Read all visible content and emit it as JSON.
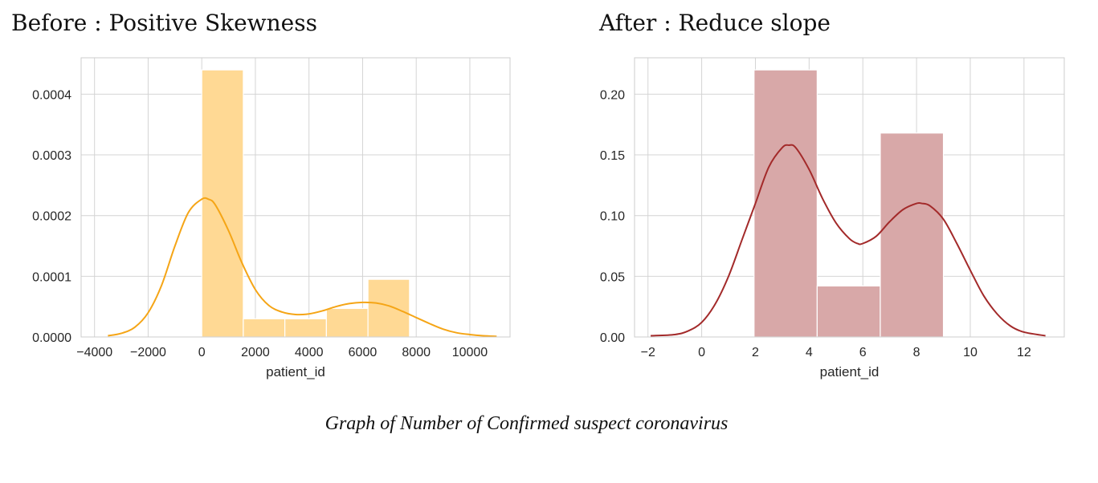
{
  "charts": [
    {
      "heading": "Before : Positive Skewness",
      "chart_data": {
        "type": "bar",
        "subtype": "histogram-with-kde",
        "xlabel": "patient_id",
        "ylabel": "",
        "xlim": [
          -4500,
          11500
        ],
        "ylim": [
          0,
          0.00046
        ],
        "xticks": [
          -4000,
          -2000,
          0,
          2000,
          4000,
          6000,
          8000,
          10000
        ],
        "xtick_labels": [
          "−4000",
          "−2000",
          "0",
          "2000",
          "4000",
          "6000",
          "8000",
          "10000"
        ],
        "yticks": [
          0,
          0.0001,
          0.0002,
          0.0003,
          0.0004
        ],
        "ytick_labels": [
          "0.0000",
          "0.0001",
          "0.0002",
          "0.0003",
          "0.0004"
        ],
        "grid": true,
        "bar_color": "#ffd994",
        "line_color": "#f5a516",
        "bins": [
          {
            "x0": 0,
            "x1": 1550,
            "value": 0.00044
          },
          {
            "x0": 1550,
            "x1": 3100,
            "value": 3e-05
          },
          {
            "x0": 3100,
            "x1": 4650,
            "value": 3e-05
          },
          {
            "x0": 4650,
            "x1": 6200,
            "value": 4.7e-05
          },
          {
            "x0": 6200,
            "x1": 7750,
            "value": 9.5e-05
          }
        ],
        "kde": {
          "x": [
            -3500,
            -3000,
            -2500,
            -2000,
            -1500,
            -1000,
            -500,
            0,
            250,
            500,
            1000,
            1500,
            2000,
            2500,
            3000,
            3500,
            4000,
            4500,
            5000,
            5500,
            6000,
            6500,
            7000,
            7500,
            8000,
            8500,
            9000,
            9500,
            10000,
            10500,
            11000
          ],
          "y": [
            2e-06,
            6e-06,
            1.6e-05,
            4e-05,
            8.5e-05,
            0.00015,
            0.000205,
            0.000227,
            0.000227,
            0.000218,
            0.000175,
            0.000122,
            7.8e-05,
            5.2e-05,
            4.1e-05,
            3.7e-05,
            3.8e-05,
            4.3e-05,
            5e-05,
            5.5e-05,
            5.7e-05,
            5.6e-05,
            5.1e-05,
            4.2e-05,
            3.2e-05,
            2.2e-05,
            1.3e-05,
            7e-06,
            4e-06,
            2e-06,
            1e-06
          ]
        }
      }
    },
    {
      "heading": "After : Reduce slope",
      "chart_data": {
        "type": "bar",
        "subtype": "histogram-with-kde",
        "xlabel": "patient_id",
        "ylabel": "",
        "xlim": [
          -2.5,
          13.5
        ],
        "ylim": [
          0,
          0.23
        ],
        "xticks": [
          -2,
          0,
          2,
          4,
          6,
          8,
          10,
          12
        ],
        "xtick_labels": [
          "−2",
          "0",
          "2",
          "4",
          "6",
          "8",
          "10",
          "12"
        ],
        "yticks": [
          0,
          0.05,
          0.1,
          0.15,
          0.2
        ],
        "ytick_labels": [
          "0.00",
          "0.05",
          "0.10",
          "0.15",
          "0.20"
        ],
        "grid": true,
        "bar_color": "#d8a8a8",
        "line_color": "#a32a2a",
        "bins": [
          {
            "x0": 1.95,
            "x1": 4.3,
            "value": 0.22
          },
          {
            "x0": 4.3,
            "x1": 6.65,
            "value": 0.042
          },
          {
            "x0": 6.65,
            "x1": 9.0,
            "value": 0.168
          }
        ],
        "kde": {
          "x": [
            -1.9,
            -1.0,
            -0.5,
            0,
            0.5,
            1.0,
            1.5,
            2.0,
            2.5,
            3.0,
            3.25,
            3.5,
            4.0,
            4.5,
            5.0,
            5.5,
            5.8,
            6.0,
            6.5,
            7.0,
            7.5,
            8.0,
            8.2,
            8.5,
            9.0,
            9.5,
            10.0,
            10.5,
            11.0,
            11.5,
            12.0,
            12.8
          ],
          "y": [
            0.001,
            0.002,
            0.005,
            0.012,
            0.027,
            0.05,
            0.08,
            0.11,
            0.14,
            0.156,
            0.158,
            0.156,
            0.138,
            0.114,
            0.094,
            0.081,
            0.077,
            0.077,
            0.083,
            0.095,
            0.105,
            0.11,
            0.11,
            0.108,
            0.097,
            0.077,
            0.055,
            0.034,
            0.019,
            0.009,
            0.004,
            0.001
          ]
        }
      }
    }
  ],
  "caption": "Graph of Number of Confirmed suspect coronavirus"
}
